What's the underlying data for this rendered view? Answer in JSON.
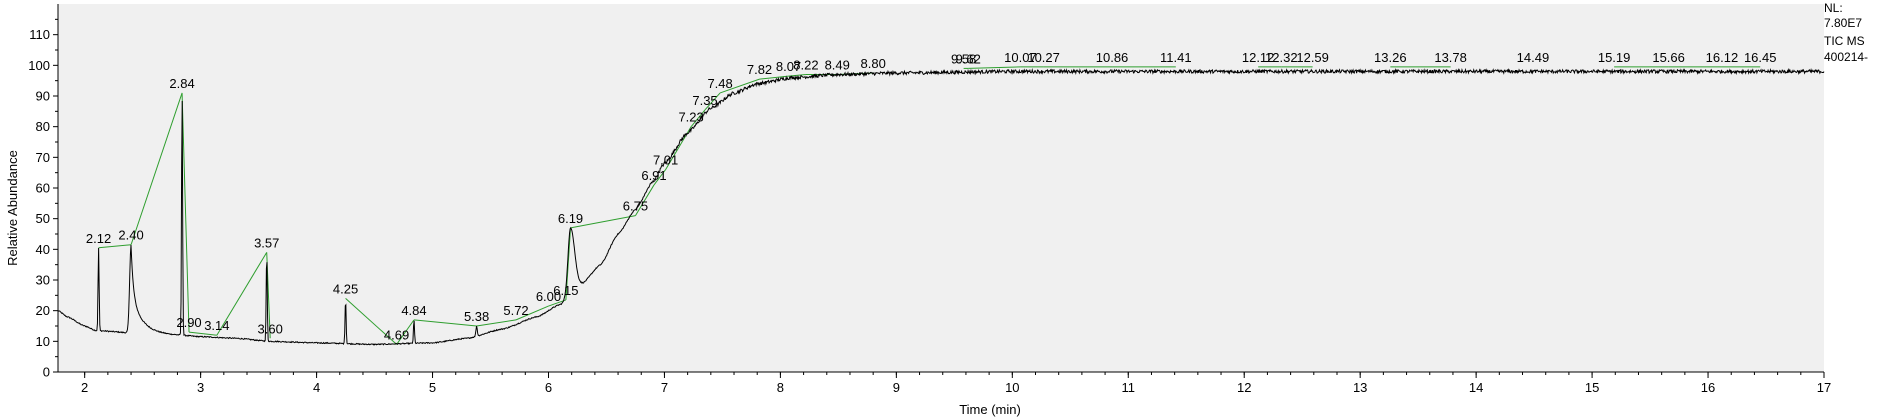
{
  "info": {
    "nl": "NL:",
    "nl_value": "7.80E7",
    "trace": "TIC  MS",
    "file": "400214-"
  },
  "chart_data": {
    "type": "line",
    "xlabel": "Time (min)",
    "ylabel": "Relative Abundance",
    "xlim": [
      1.77,
      17.0
    ],
    "ylim": [
      0,
      120
    ],
    "x_ticks": [
      2,
      3,
      4,
      5,
      6,
      7,
      8,
      9,
      10,
      11,
      12,
      13,
      14,
      15,
      16,
      17
    ],
    "y_ticks": [
      0,
      10,
      20,
      30,
      40,
      50,
      60,
      70,
      80,
      90,
      100,
      110
    ],
    "grid": false,
    "colors": {
      "trace": "#000000",
      "baseline": "#2e9e2e",
      "plot_bg": "#f0f0f0",
      "axis": "#000000"
    },
    "baseline_points": [
      {
        "x": 1.77,
        "y": 20
      },
      {
        "x": 1.85,
        "y": 18
      },
      {
        "x": 2.0,
        "y": 15
      },
      {
        "x": 2.1,
        "y": 13.5
      },
      {
        "x": 2.5,
        "y": 12.5
      },
      {
        "x": 2.8,
        "y": 12
      },
      {
        "x": 3.0,
        "y": 11.5
      },
      {
        "x": 3.3,
        "y": 11
      },
      {
        "x": 3.6,
        "y": 10
      },
      {
        "x": 4.0,
        "y": 9.5
      },
      {
        "x": 4.5,
        "y": 9
      },
      {
        "x": 5.0,
        "y": 9.5
      },
      {
        "x": 5.3,
        "y": 11
      },
      {
        "x": 5.6,
        "y": 14
      },
      {
        "x": 5.9,
        "y": 18
      },
      {
        "x": 6.1,
        "y": 22
      },
      {
        "x": 6.18,
        "y": 24
      },
      {
        "x": 6.28,
        "y": 28.5
      },
      {
        "x": 6.45,
        "y": 35
      },
      {
        "x": 6.6,
        "y": 45
      },
      {
        "x": 6.75,
        "y": 53
      },
      {
        "x": 6.9,
        "y": 62
      },
      {
        "x": 7.0,
        "y": 68
      },
      {
        "x": 7.2,
        "y": 78
      },
      {
        "x": 7.4,
        "y": 86
      },
      {
        "x": 7.6,
        "y": 91
      },
      {
        "x": 7.8,
        "y": 94
      },
      {
        "x": 8.1,
        "y": 96
      },
      {
        "x": 8.5,
        "y": 97
      },
      {
        "x": 9.0,
        "y": 97.5
      },
      {
        "x": 10.0,
        "y": 98
      },
      {
        "x": 17.0,
        "y": 98
      }
    ],
    "peaks": [
      {
        "rt": 2.12,
        "label": "2.12",
        "height": 40.5,
        "type": "sharp"
      },
      {
        "rt": 2.4,
        "label": "2.40",
        "height": 41.5,
        "type": "tail"
      },
      {
        "rt": 2.84,
        "label": "2.84",
        "height": 91,
        "type": "sharp"
      },
      {
        "rt": 2.9,
        "label": "2.90",
        "height": 13,
        "type": "none"
      },
      {
        "rt": 3.14,
        "label": "3.14",
        "height": 12,
        "type": "none"
      },
      {
        "rt": 3.57,
        "label": "3.57",
        "height": 39,
        "type": "sharp"
      },
      {
        "rt": 3.6,
        "label": "3.60",
        "height": 11,
        "type": "none"
      },
      {
        "rt": 4.25,
        "label": "4.25",
        "height": 24,
        "type": "sharp"
      },
      {
        "rt": 4.69,
        "label": "4.69",
        "height": 9,
        "type": "none"
      },
      {
        "rt": 4.84,
        "label": "4.84",
        "height": 17,
        "type": "sharp"
      },
      {
        "rt": 5.38,
        "label": "5.38",
        "height": 15,
        "type": "small"
      },
      {
        "rt": 5.72,
        "label": "5.72",
        "height": 17,
        "type": "none"
      },
      {
        "rt": 6.0,
        "label": "6.00",
        "height": 21.5,
        "type": "none"
      },
      {
        "rt": 6.15,
        "label": "6.15",
        "height": 23.5,
        "type": "none"
      },
      {
        "rt": 6.19,
        "label": "6.19",
        "height": 47,
        "type": "broad"
      },
      {
        "rt": 6.75,
        "label": "6.75",
        "height": 51,
        "type": "none"
      },
      {
        "rt": 6.91,
        "label": "6.91",
        "height": 61,
        "type": "none"
      },
      {
        "rt": 7.01,
        "label": "7.01",
        "height": 66,
        "type": "none"
      },
      {
        "rt": 7.23,
        "label": "7.23",
        "height": 80,
        "type": "none"
      },
      {
        "rt": 7.35,
        "label": "7.35",
        "height": 85.5,
        "type": "none"
      },
      {
        "rt": 7.48,
        "label": "7.48",
        "height": 91,
        "type": "none"
      },
      {
        "rt": 7.82,
        "label": "7.82",
        "height": 95.5,
        "type": "none"
      },
      {
        "rt": 8.07,
        "label": "8.07",
        "height": 96.5,
        "type": "none"
      },
      {
        "rt": 8.22,
        "label": "8.22",
        "height": 97,
        "type": "none"
      },
      {
        "rt": 8.49,
        "label": "8.49",
        "height": 97,
        "type": "none"
      },
      {
        "rt": 8.8,
        "label": "8.80",
        "height": 97.5,
        "type": "none"
      },
      {
        "rt": 9.58,
        "label": "9.58",
        "height": 99,
        "type": "none"
      },
      {
        "rt": 9.62,
        "label": "9.62",
        "height": 99,
        "type": "none"
      },
      {
        "rt": 10.07,
        "label": "10.07",
        "height": 99.5,
        "type": "none"
      },
      {
        "rt": 10.27,
        "label": "10.27",
        "height": 99.5,
        "type": "none"
      },
      {
        "rt": 10.86,
        "label": "10.86",
        "height": 99.5,
        "type": "none"
      },
      {
        "rt": 11.41,
        "label": "11.41",
        "height": 99.5,
        "type": "none"
      },
      {
        "rt": 12.12,
        "label": "12.12",
        "height": 99.5,
        "type": "none"
      },
      {
        "rt": 12.32,
        "label": "12.32",
        "height": 99.5,
        "type": "none"
      },
      {
        "rt": 12.59,
        "label": "12.59",
        "height": 99.5,
        "type": "none"
      },
      {
        "rt": 13.26,
        "label": "13.26",
        "height": 99.5,
        "type": "none"
      },
      {
        "rt": 13.78,
        "label": "13.78",
        "height": 99.5,
        "type": "none"
      },
      {
        "rt": 14.49,
        "label": "14.49",
        "height": 99.5,
        "type": "none"
      },
      {
        "rt": 15.19,
        "label": "15.19",
        "height": 99.5,
        "type": "none"
      },
      {
        "rt": 15.66,
        "label": "15.66",
        "height": 99.5,
        "type": "none"
      },
      {
        "rt": 16.12,
        "label": "16.12",
        "height": 99.5,
        "type": "none"
      },
      {
        "rt": 16.45,
        "label": "16.45",
        "height": 99.5,
        "type": "none"
      }
    ]
  }
}
